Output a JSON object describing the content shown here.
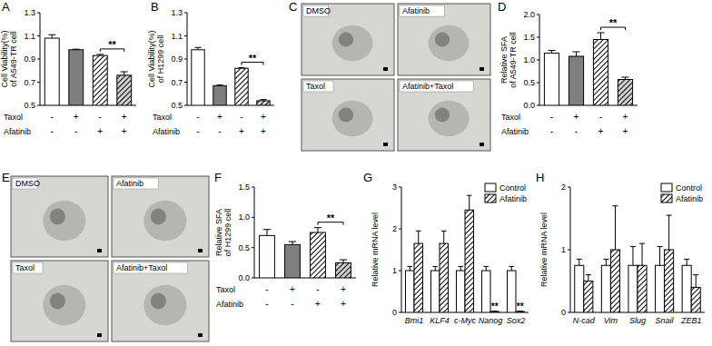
{
  "chart_data": [
    {
      "panel": "A",
      "type": "bar",
      "y_label": [
        "Cell Viability(%)",
        "of A549-TR cell"
      ],
      "categories": [
        null,
        null,
        null,
        null
      ],
      "values": [
        1.08,
        0.98,
        0.93,
        0.76
      ],
      "errors": [
        0.03,
        0.005,
        0.01,
        0.03
      ],
      "colors": [
        "#ffffff",
        "#7f7f7f",
        "#ffffff",
        "#d0d0d0"
      ],
      "ylim": [
        0.5,
        1.3
      ],
      "yticks": [
        0.5,
        0.7,
        0.9,
        1.1,
        1.3
      ],
      "conditions": [
        {
          "name": "Taxol",
          "signs": [
            "-",
            "+",
            "-",
            "+"
          ]
        },
        {
          "name": "Afatinib",
          "signs": [
            "-",
            "-",
            "+",
            "+"
          ]
        }
      ],
      "annotations": [
        {
          "text": "**",
          "between": [
            2,
            3
          ]
        }
      ]
    },
    {
      "panel": "B",
      "type": "bar",
      "y_label": [
        "Cell Viability(%)",
        "of H1299 cell"
      ],
      "categories": [
        null,
        null,
        null,
        null
      ],
      "values": [
        0.98,
        0.67,
        0.82,
        0.54
      ],
      "errors": [
        0.02,
        0.005,
        0.005,
        0.01
      ],
      "colors": [
        "#ffffff",
        "#7f7f7f",
        "#ffffff",
        "#d0d0d0"
      ],
      "ylim": [
        0.5,
        1.3
      ],
      "yticks": [
        0.5,
        0.7,
        0.9,
        1.1,
        1.3
      ],
      "conditions": [
        {
          "name": "Taxol",
          "signs": [
            "-",
            "+",
            "-",
            "+"
          ]
        },
        {
          "name": "Afatinib",
          "signs": [
            "-",
            "-",
            "+",
            "+"
          ]
        }
      ],
      "annotations": [
        {
          "text": "**",
          "between": [
            2,
            3
          ]
        }
      ]
    },
    {
      "panel": "C",
      "type": "image",
      "labels": [
        "DMSO",
        "Afatinib",
        "Taxol",
        "Afatinib+Taxol"
      ]
    },
    {
      "panel": "D",
      "type": "bar",
      "y_label": [
        "Relative SFA",
        "of A549-TR cell"
      ],
      "categories": [
        null,
        null,
        null,
        null
      ],
      "values": [
        1.15,
        1.08,
        1.45,
        0.57
      ],
      "errors": [
        0.06,
        0.1,
        0.15,
        0.05
      ],
      "colors": [
        "#ffffff",
        "#7f7f7f",
        "#ffffff",
        "#d0d0d0"
      ],
      "ylim": [
        0,
        2
      ],
      "yticks": [
        {
          "value": 0,
          "label": "0.0"
        },
        {
          "value": 0.5,
          "label": "0.5"
        },
        {
          "value": 1,
          "label": "1.0"
        },
        {
          "value": 1.5,
          "label": "1.5"
        },
        {
          "value": 2,
          "label": "2.0"
        }
      ],
      "conditions": [
        {
          "name": "Taxol",
          "signs": [
            "-",
            "+",
            "-",
            "+"
          ]
        },
        {
          "name": "Afatinib",
          "signs": [
            "-",
            "-",
            "+",
            "+"
          ]
        }
      ],
      "annotations": [
        {
          "text": "**",
          "between": [
            2,
            3
          ]
        }
      ]
    },
    {
      "panel": "E",
      "type": "image",
      "labels": [
        "DMSO",
        "Afatinib",
        "Taxol",
        "Afatinib+Taxol"
      ]
    },
    {
      "panel": "F",
      "type": "bar",
      "y_label": [
        "Relative SFA",
        "of H1299 cell"
      ],
      "categories": [
        null,
        null,
        null,
        null
      ],
      "values": [
        0.7,
        0.55,
        0.75,
        0.25
      ],
      "errors": [
        0.1,
        0.05,
        0.08,
        0.05
      ],
      "colors": [
        "#ffffff",
        "#7f7f7f",
        "#ffffff",
        "#d0d0d0"
      ],
      "ylim": [
        0,
        1.5
      ],
      "yticks": [
        {
          "value": 0,
          "label": "0.0"
        },
        {
          "value": 0.5,
          "label": "0.5"
        },
        {
          "value": 1,
          "label": "1.0"
        },
        {
          "value": 1.5,
          "label": "1.5"
        }
      ],
      "conditions": [
        {
          "name": "Taxol",
          "signs": [
            "-",
            "+",
            "-",
            "+"
          ]
        },
        {
          "name": "Afatinib",
          "signs": [
            "-",
            "-",
            "+",
            "+"
          ]
        }
      ],
      "annotations": [
        {
          "text": "**",
          "between": [
            2,
            3
          ]
        }
      ]
    },
    {
      "panel": "G",
      "type": "bar",
      "y_label": [
        "Relative mRNA level"
      ],
      "categories": [
        "Bmi1",
        "KLF4",
        "c-Myc",
        "Nanog",
        "Sox2"
      ],
      "series": [
        {
          "name": "Control",
          "color": "#ffffff",
          "values": [
            1,
            1,
            1,
            1,
            1
          ],
          "errors": [
            0.1,
            0.1,
            0.1,
            0.1,
            0.1
          ]
        },
        {
          "name": "Afatinib",
          "color": "#ffffff",
          "values": [
            1.65,
            1.65,
            2.45,
            0.02,
            0.02
          ],
          "errors": [
            0.3,
            0.3,
            0.35,
            0.01,
            0.01
          ]
        }
      ],
      "ylim": [
        0,
        3
      ],
      "yticks": [
        0,
        1,
        2,
        3
      ],
      "legend": "top-right",
      "annotations": [
        {
          "text": "**",
          "category": 3,
          "series": 1
        },
        {
          "text": "**",
          "category": 4,
          "series": 1
        }
      ]
    },
    {
      "panel": "H",
      "type": "bar",
      "y_label": [
        "Relative mRNA level"
      ],
      "categories": [
        "N-cad",
        "Vim",
        "Slug",
        "Snail",
        "ZEB1"
      ],
      "series": [
        {
          "name": "Control",
          "color": "#ffffff",
          "values": [
            0.75,
            0.75,
            0.75,
            0.75,
            0.75
          ],
          "errors": [
            0.1,
            0.1,
            0.3,
            0.3,
            0.1
          ]
        },
        {
          "name": "Afatinib",
          "color": "#ffffff",
          "values": [
            0.5,
            1,
            0.75,
            1,
            0.4
          ],
          "errors": [
            0.1,
            0.7,
            0.35,
            0.55,
            0.2
          ]
        }
      ],
      "ylim": [
        0,
        2
      ],
      "yticks": [
        0,
        1,
        2
      ],
      "legend": "top-right"
    }
  ]
}
